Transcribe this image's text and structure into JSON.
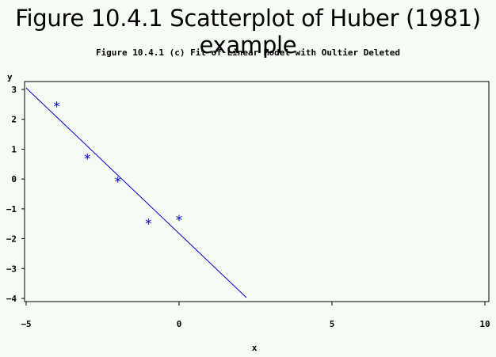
{
  "chart_data": {
    "type": "scatter",
    "title": "Figure 10.4.1 Scatterplot of Huber (1981) example",
    "subtitle": "Figure 10.4.1 (c) Fit of Linear Model with Oultier Deleted",
    "xlabel": "x",
    "ylabel": "y",
    "xlim": [
      -5,
      10
    ],
    "ylim": [
      -4,
      3
    ],
    "xticks": [
      -5,
      0,
      5,
      10
    ],
    "yticks": [
      3,
      2,
      1,
      0,
      -1,
      -2,
      -3,
      -4
    ],
    "grid": false,
    "marker": "*",
    "colors": {
      "points": "#0000c8",
      "line": "#0000c8",
      "frame": "#000000"
    },
    "points": [
      {
        "x": -4,
        "y": 2.48
      },
      {
        "x": -3,
        "y": 0.73
      },
      {
        "x": -2,
        "y": -0.04
      },
      {
        "x": -1,
        "y": -1.44
      },
      {
        "x": 0,
        "y": -1.32
      }
    ],
    "fit_line": {
      "x1": -5,
      "y1": 3.05,
      "x2": 2.2,
      "y2": -3.97
    }
  }
}
